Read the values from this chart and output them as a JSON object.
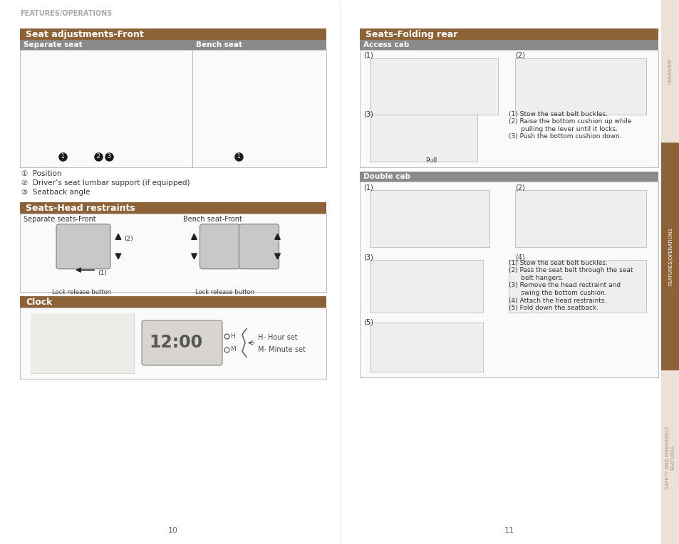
{
  "page_bg": "#ffffff",
  "sidebar_bg": "#e8ddd5",
  "section_brown": "#8c6239",
  "subheader_gray": "#8a8a8a",
  "header_text": "FEATURES/OPERATIONS",
  "left_page_num": "10",
  "right_page_num": "11",
  "bullets": [
    "①  Position",
    "②  Driver’s seat lumbar support (if equipped)",
    "③  Seatback angle"
  ],
  "access_cab_instr": [
    "(1) Stow the seat belt buckles.",
    "(2) Raise the bottom cushion up while",
    "      pulling the lever until it locks.",
    "(3) Push the bottom cushion down."
  ],
  "double_cab_instr": [
    "(1) Stow the seat belt buckles.",
    "(2) Pass the seat belt through the seat",
    "      belt hangers.",
    "(3) Remove the head restraint and",
    "      swing the bottom cushion.",
    "(4) Attach the head restraints.",
    "(5) Fold down the seatback."
  ]
}
